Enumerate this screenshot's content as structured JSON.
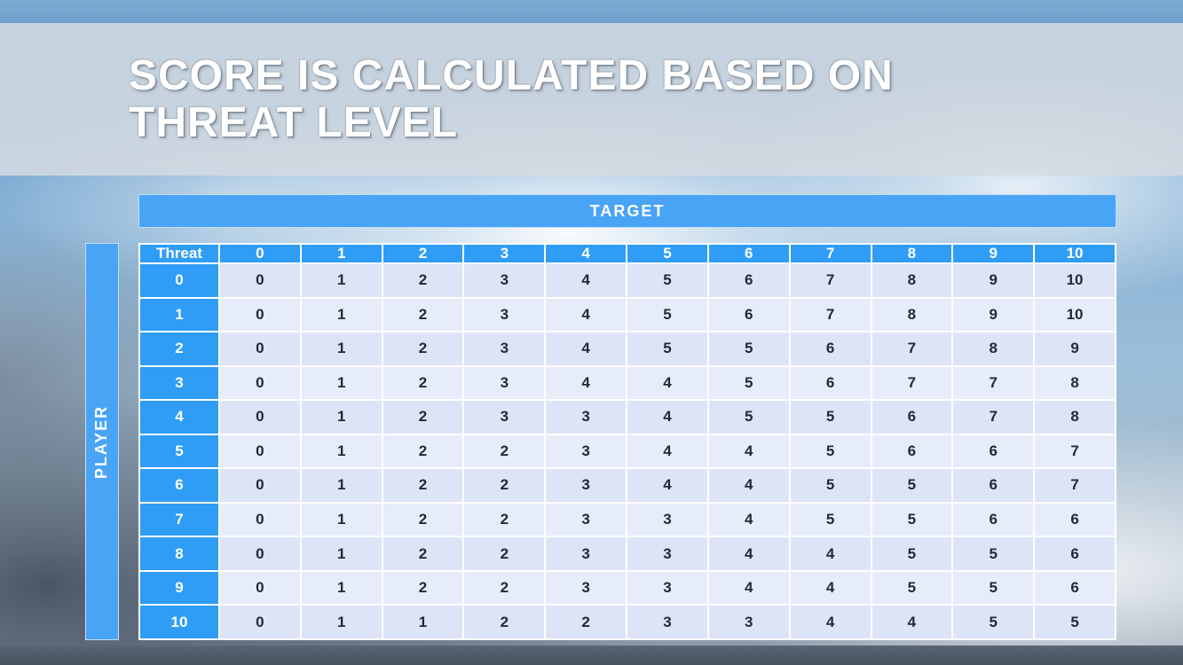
{
  "slide": {
    "title_line1": "SCORE IS CALCULATED BASED ON",
    "title_line2": "THREAT LEVEL"
  },
  "matrix": {
    "target_label": "TARGET",
    "player_label": "PLAYER",
    "corner_label": "Threat",
    "column_headers": [
      "0",
      "1",
      "2",
      "3",
      "4",
      "5",
      "6",
      "7",
      "8",
      "9",
      "10"
    ],
    "rows": [
      {
        "header": "0",
        "values": [
          "0",
          "1",
          "2",
          "3",
          "4",
          "5",
          "6",
          "7",
          "8",
          "9",
          "10"
        ]
      },
      {
        "header": "1",
        "values": [
          "0",
          "1",
          "2",
          "3",
          "4",
          "5",
          "6",
          "7",
          "8",
          "9",
          "10"
        ]
      },
      {
        "header": "2",
        "values": [
          "0",
          "1",
          "2",
          "3",
          "4",
          "5",
          "5",
          "6",
          "7",
          "8",
          "9"
        ]
      },
      {
        "header": "3",
        "values": [
          "0",
          "1",
          "2",
          "3",
          "4",
          "4",
          "5",
          "6",
          "7",
          "7",
          "8"
        ]
      },
      {
        "header": "4",
        "values": [
          "0",
          "1",
          "2",
          "3",
          "3",
          "4",
          "5",
          "5",
          "6",
          "7",
          "8"
        ]
      },
      {
        "header": "5",
        "values": [
          "0",
          "1",
          "2",
          "2",
          "3",
          "4",
          "4",
          "5",
          "6",
          "6",
          "7"
        ]
      },
      {
        "header": "6",
        "values": [
          "0",
          "1",
          "2",
          "2",
          "3",
          "4",
          "4",
          "5",
          "5",
          "6",
          "7"
        ]
      },
      {
        "header": "7",
        "values": [
          "0",
          "1",
          "2",
          "2",
          "3",
          "3",
          "4",
          "5",
          "5",
          "6",
          "6"
        ]
      },
      {
        "header": "8",
        "values": [
          "0",
          "1",
          "2",
          "2",
          "3",
          "3",
          "4",
          "4",
          "5",
          "5",
          "6"
        ]
      },
      {
        "header": "9",
        "values": [
          "0",
          "1",
          "2",
          "2",
          "3",
          "3",
          "4",
          "4",
          "5",
          "5",
          "6"
        ]
      },
      {
        "header": "10",
        "values": [
          "0",
          "1",
          "1",
          "2",
          "2",
          "3",
          "3",
          "4",
          "4",
          "5",
          "5"
        ]
      }
    ]
  },
  "colors": {
    "header_blue": "#2f9df5",
    "axis_blue": "#4aa4f6",
    "cell_band_a": "#dde4f7",
    "cell_band_b": "#e7ecfb",
    "top_strip": "#74a4cf",
    "bottom_strip": "#4e5a66"
  }
}
